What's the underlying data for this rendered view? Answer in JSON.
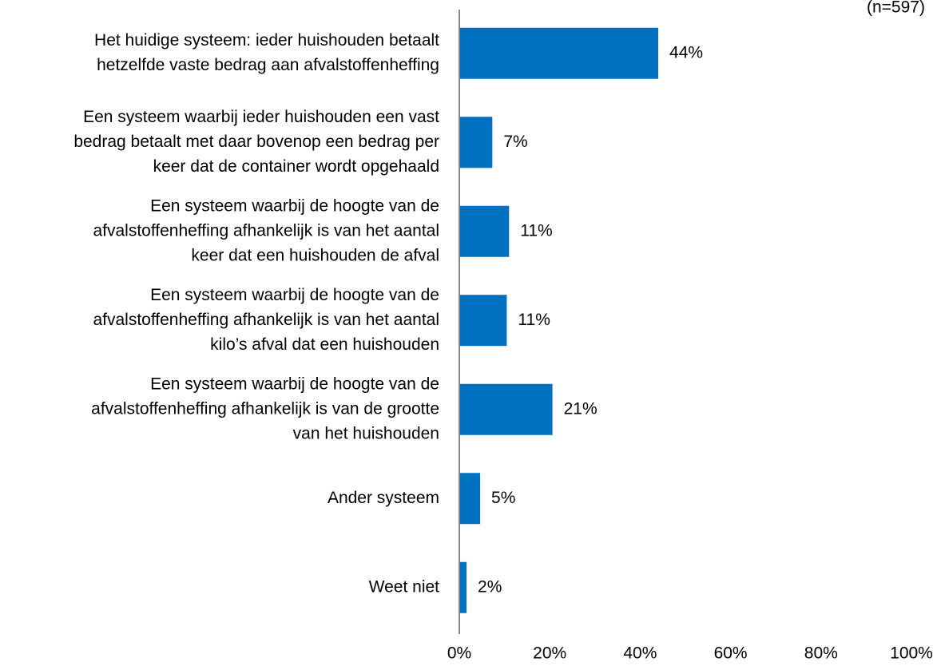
{
  "sample_note": "(n=597)",
  "colors": {
    "bar": "#0070C0",
    "axis": "#868686"
  },
  "chart_data": {
    "type": "bar",
    "orientation": "horizontal",
    "categories": [
      [
        "Het huidige systeem: ieder huishouden betaalt",
        "hetzelfde vaste bedrag aan afvalstoffenheffing"
      ],
      [
        "Een systeem waarbij ieder huishouden een vast",
        "bedrag betaalt met daar bovenop een bedrag per",
        "keer dat de container wordt opgehaald"
      ],
      [
        "Een systeem waarbij de hoogte van de",
        "afvalstoffenheffing afhankelijk is van het aantal",
        "keer dat een huishouden de afval"
      ],
      [
        "Een systeem waarbij de hoogte van de",
        "afvalstoffenheffing afhankelijk is van het aantal",
        "kilo’s afval dat een huishouden"
      ],
      [
        "Een systeem waarbij de hoogte van de",
        "afvalstoffenheffing afhankelijk is van de grootte",
        "van het huishouden"
      ],
      [
        "Ander systeem"
      ],
      [
        "Weet niet"
      ]
    ],
    "values": [
      44,
      7.3,
      11,
      10.5,
      20.6,
      4.6,
      1.6
    ],
    "data_labels": [
      "44%",
      "7%",
      "11%",
      "11%",
      "21%",
      "5%",
      "2%"
    ],
    "xlim": [
      0,
      100
    ],
    "xticks": [
      0,
      20,
      40,
      60,
      80,
      100
    ],
    "xtick_labels": [
      "0%",
      "20%",
      "40%",
      "60%",
      "80%",
      "100%"
    ],
    "grid": false,
    "legend": "none"
  }
}
